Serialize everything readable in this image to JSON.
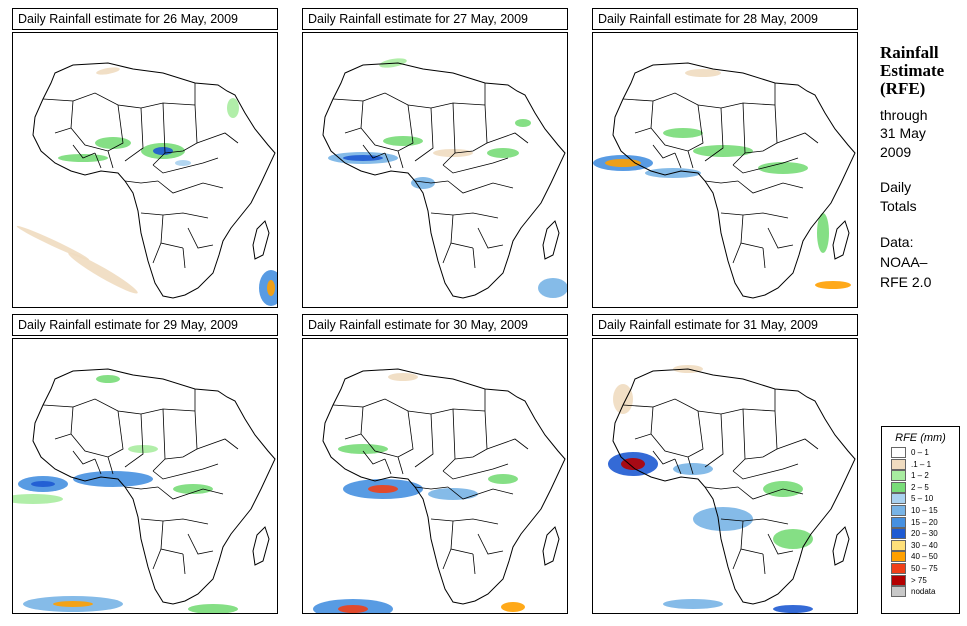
{
  "side": {
    "title_line1": "Rainfall",
    "title_line2": "Estimate",
    "title_line3": "(RFE)",
    "through": "through",
    "date_line1": "31 May",
    "date_line2": "2009",
    "totals_line1": "Daily",
    "totals_line2": "Totals",
    "source_line1": "Data:",
    "source_line2": "NOAA–",
    "source_line3": "RFE 2.0"
  },
  "panels": [
    {
      "title": "Daily Rainfall estimate for  26 May, 2009"
    },
    {
      "title": "Daily Rainfall estimate for  27 May, 2009"
    },
    {
      "title": "Daily Rainfall estimate for  28 May, 2009"
    },
    {
      "title": "Daily Rainfall estimate for  29 May, 2009"
    },
    {
      "title": "Daily Rainfall estimate for  30 May, 2009"
    },
    {
      "title": "Daily Rainfall estimate for  31 May, 2009"
    }
  ],
  "legend": {
    "title": "RFE (mm)",
    "items": [
      {
        "label": "0 – 1",
        "color": "#ffffff"
      },
      {
        "label": ".1 – 1",
        "color": "#f0dcc0"
      },
      {
        "label": "1 – 2",
        "color": "#a8eca0"
      },
      {
        "label": "2 – 5",
        "color": "#78dc78"
      },
      {
        "label": "5 – 10",
        "color": "#aad2f0"
      },
      {
        "label": "10 – 15",
        "color": "#78b4e6"
      },
      {
        "label": "15 – 20",
        "color": "#4690e0"
      },
      {
        "label": "20 – 30",
        "color": "#1e5ad2"
      },
      {
        "label": "30 – 40",
        "color": "#ffe07a"
      },
      {
        "label": "40 – 50",
        "color": "#ffa000"
      },
      {
        "label": "50 – 75",
        "color": "#f04018"
      },
      {
        "label": "> 75",
        "color": "#b40000"
      },
      {
        "label": "nodata",
        "color": "#c8c8c8"
      }
    ]
  }
}
